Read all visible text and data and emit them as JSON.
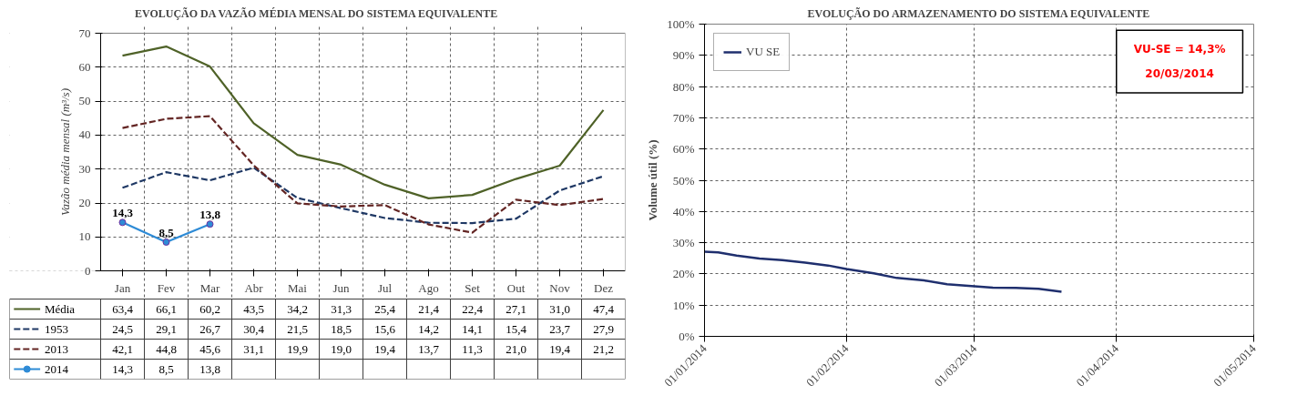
{
  "chart_data": [
    {
      "type": "line",
      "title": "EVOLUÇÃO DA VAZÃO MÉDIA MENSAL DO SISTEMA EQUIVALENTE",
      "ylabel": "Vazão média mensal (m³/s)",
      "categories": [
        "Jan",
        "Fev",
        "Mar",
        "Abr",
        "Mai",
        "Jun",
        "Jul",
        "Ago",
        "Set",
        "Out",
        "Nov",
        "Dez"
      ],
      "series": [
        {
          "name": "Média",
          "color": "#4f6228",
          "line_style": "solid",
          "marker": "none",
          "values": [
            63.4,
            66.1,
            60.2,
            43.5,
            34.2,
            31.3,
            25.4,
            21.4,
            22.4,
            27.1,
            31.0,
            47.4
          ],
          "value_labels": [
            "63,4",
            "66,1",
            "60,2",
            "43,5",
            "34,2",
            "31,3",
            "25,4",
            "21,4",
            "22,4",
            "27,1",
            "31,0",
            "47,4"
          ]
        },
        {
          "name": "1953",
          "color": "#1f3864",
          "line_style": "dashed",
          "marker": "none",
          "values": [
            24.5,
            29.1,
            26.7,
            30.4,
            21.5,
            18.5,
            15.6,
            14.2,
            14.1,
            15.4,
            23.7,
            27.9
          ],
          "value_labels": [
            "24,5",
            "29,1",
            "26,7",
            "30,4",
            "21,5",
            "18,5",
            "15,6",
            "14,2",
            "14,1",
            "15,4",
            "23,7",
            "27,9"
          ]
        },
        {
          "name": "2013",
          "color": "#632523",
          "line_style": "dashed",
          "marker": "none",
          "values": [
            42.1,
            44.8,
            45.6,
            31.1,
            19.9,
            19.0,
            19.4,
            13.7,
            11.3,
            21.0,
            19.4,
            21.2
          ],
          "value_labels": [
            "42,1",
            "44,8",
            "45,6",
            "31,1",
            "19,9",
            "19,0",
            "19,4",
            "13,7",
            "11,3",
            "21,0",
            "19,4",
            "21,2"
          ]
        },
        {
          "name": "2014",
          "color": "#2e8bd6",
          "line_style": "solid",
          "marker": "circle",
          "value_labels": [
            "14,3",
            "8,5",
            "13,8",
            null,
            null,
            null,
            null,
            null,
            null,
            null,
            null,
            null
          ],
          "values": [
            14.3,
            8.5,
            13.8,
            null,
            null,
            null,
            null,
            null,
            null,
            null,
            null,
            null
          ]
        }
      ],
      "ylim": [
        0,
        70
      ],
      "yticks": [
        0,
        10,
        20,
        30,
        40,
        50,
        60,
        70
      ],
      "grid": true,
      "legend": "bottom"
    },
    {
      "type": "line",
      "title": "EVOLUÇÃO DO ARMAZENAMENTO DO SISTEMA EQUIVALENTE",
      "ylabel": "Volume útil (%)",
      "x": [
        "2014-01-01",
        "2014-01-04",
        "2014-01-08",
        "2014-01-13",
        "2014-01-18",
        "2014-01-23",
        "2014-01-28",
        "2014-02-01",
        "2014-02-07",
        "2014-02-12",
        "2014-02-18",
        "2014-02-23",
        "2014-03-01",
        "2014-03-05",
        "2014-03-10",
        "2014-03-15",
        "2014-03-20"
      ],
      "series": [
        {
          "name": "VU SE",
          "color": "#1f2f6e",
          "values": [
            27.1,
            26.9,
            25.9,
            24.9,
            24.4,
            23.6,
            22.7,
            21.6,
            20.2,
            18.7,
            17.9,
            16.7,
            16.0,
            15.6,
            15.5,
            15.2,
            14.3
          ]
        }
      ],
      "xlim": [
        "2014-01-01",
        "2014-05-01"
      ],
      "xticks": [
        {
          "value": "2014-01-01",
          "label": "01/01/2014"
        },
        {
          "value": "2014-02-01",
          "label": "01/02/2014"
        },
        {
          "value": "2014-03-01",
          "label": "01/03/2014"
        },
        {
          "value": "2014-04-01",
          "label": "01/04/2014"
        },
        {
          "value": "2014-05-01",
          "label": "01/05/2014"
        }
      ],
      "ylim": [
        0,
        100
      ],
      "yticks": [
        {
          "value": 0,
          "label": "0%"
        },
        {
          "value": 10,
          "label": "10%"
        },
        {
          "value": 20,
          "label": "20%"
        },
        {
          "value": 30,
          "label": "30%"
        },
        {
          "value": 40,
          "label": "40%"
        },
        {
          "value": 50,
          "label": "50%"
        },
        {
          "value": 60,
          "label": "60%"
        },
        {
          "value": 70,
          "label": "70%"
        },
        {
          "value": 80,
          "label": "80%"
        },
        {
          "value": 90,
          "label": "90%"
        },
        {
          "value": 100,
          "label": "100%"
        }
      ],
      "grid": true,
      "legend": "top left",
      "line_style": "solid",
      "annotations": [
        "VU-SE = 14,3%",
        "20/03/2014"
      ]
    }
  ]
}
